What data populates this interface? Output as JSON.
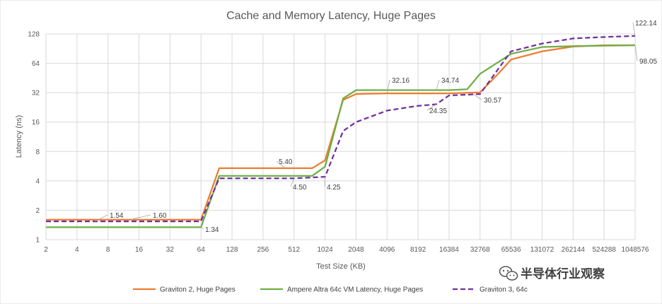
{
  "chart_data": {
    "type": "line",
    "title": "Cache and Memory Latency, Huge Pages",
    "xlabel": "Test Size (KB)",
    "ylabel": "Latency (ns)",
    "yscale": "log2",
    "ylim": [
      1,
      128
    ],
    "yticks": [
      "1",
      "2",
      "4",
      "8",
      "16",
      "32",
      "64",
      "128"
    ],
    "xscale": "log2",
    "xticks": [
      "2",
      "4",
      "8",
      "16",
      "32",
      "64",
      "128",
      "256",
      "512",
      "1024",
      "2048",
      "4096",
      "8192",
      "16384",
      "32768",
      "65536",
      "131072",
      "262144",
      "524288",
      "1048576"
    ],
    "grid": "vertical and horizontal",
    "legend_position": "bottom",
    "series": [
      {
        "name": "Graviton 2, Huge Pages",
        "color": "#ED7D31",
        "dash": "solid",
        "points": [
          [
            2,
            1.6
          ],
          [
            4,
            1.6
          ],
          [
            8,
            1.6
          ],
          [
            16,
            1.6
          ],
          [
            32,
            1.6
          ],
          [
            64,
            1.6
          ],
          [
            96,
            5.4
          ],
          [
            128,
            5.4
          ],
          [
            256,
            5.4
          ],
          [
            512,
            5.4
          ],
          [
            768,
            5.4
          ],
          [
            1024,
            6.5
          ],
          [
            1536,
            27
          ],
          [
            2048,
            31
          ],
          [
            4096,
            31.5
          ],
          [
            8192,
            31.5
          ],
          [
            16384,
            31.5
          ],
          [
            32768,
            32.3
          ],
          [
            49152,
            50
          ],
          [
            65536,
            70
          ],
          [
            131072,
            85
          ],
          [
            262144,
            95
          ],
          [
            524288,
            98
          ],
          [
            1048576,
            98.05
          ]
        ]
      },
      {
        "name": "Ampere Altra 64c VM Latency, Huge Pages",
        "color": "#70AD47",
        "dash": "solid",
        "points": [
          [
            2,
            1.34
          ],
          [
            4,
            1.34
          ],
          [
            8,
            1.34
          ],
          [
            16,
            1.34
          ],
          [
            32,
            1.34
          ],
          [
            64,
            1.34
          ],
          [
            96,
            4.5
          ],
          [
            128,
            4.5
          ],
          [
            256,
            4.5
          ],
          [
            512,
            4.5
          ],
          [
            768,
            4.5
          ],
          [
            1024,
            5.6
          ],
          [
            1536,
            28
          ],
          [
            2048,
            34
          ],
          [
            4096,
            34
          ],
          [
            8192,
            34
          ],
          [
            16384,
            34
          ],
          [
            24576,
            34.74
          ],
          [
            32768,
            50
          ],
          [
            65536,
            80
          ],
          [
            131072,
            94
          ],
          [
            262144,
            96
          ],
          [
            524288,
            97
          ],
          [
            1048576,
            98
          ]
        ]
      },
      {
        "name": "Graviton 3, 64c",
        "color": "#7030A0",
        "dash": "dashed",
        "points": [
          [
            2,
            1.54
          ],
          [
            4,
            1.54
          ],
          [
            8,
            1.54
          ],
          [
            16,
            1.54
          ],
          [
            32,
            1.54
          ],
          [
            64,
            1.54
          ],
          [
            96,
            4.25
          ],
          [
            128,
            4.25
          ],
          [
            256,
            4.25
          ],
          [
            512,
            4.25
          ],
          [
            1024,
            4.4
          ],
          [
            1536,
            13
          ],
          [
            2048,
            16
          ],
          [
            4096,
            21
          ],
          [
            8192,
            23.5
          ],
          [
            12288,
            24.35
          ],
          [
            16384,
            30
          ],
          [
            24576,
            30.57
          ],
          [
            32768,
            31
          ],
          [
            65536,
            85
          ],
          [
            131072,
            102
          ],
          [
            262144,
            115
          ],
          [
            524288,
            119
          ],
          [
            1048576,
            122.14
          ]
        ]
      }
    ],
    "annotations": [
      "1.54",
      "1.60",
      "1.34",
      "5.40",
      "4.50",
      "4.25",
      "32.16",
      "34.74",
      "24.35",
      "30.57",
      "122.14",
      "98.05"
    ]
  },
  "watermark": {
    "icon": "wechat-icon",
    "text": "半导体行业观察"
  }
}
